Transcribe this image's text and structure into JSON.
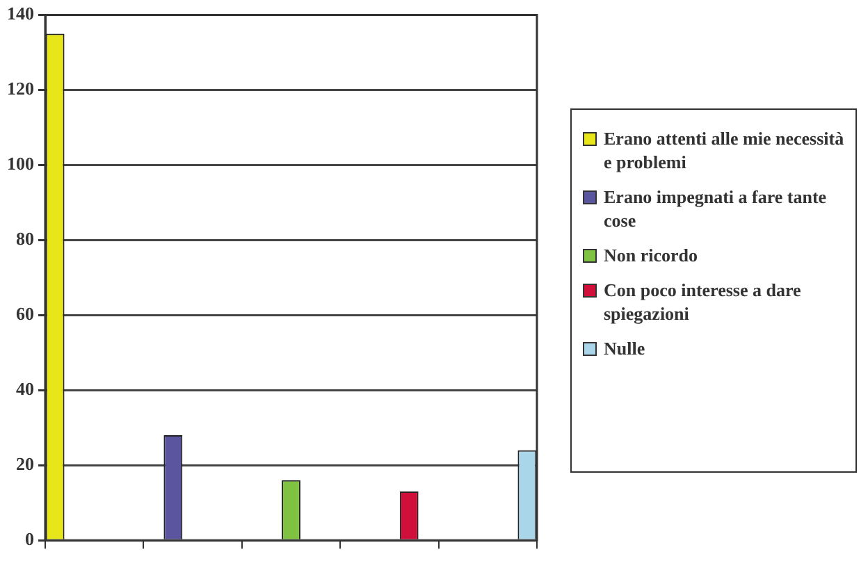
{
  "chart_data": {
    "type": "bar",
    "categories": [
      null,
      null,
      null,
      null,
      null
    ],
    "series": [
      {
        "name": "Erano attenti alle mie necessità e problemi",
        "color": "#e6e61a",
        "values": [
          135,
          null,
          null,
          null,
          null
        ]
      },
      {
        "name": "Erano impegnati a fare tante cose",
        "color": "#5a559e",
        "values": [
          null,
          28,
          null,
          null,
          null
        ]
      },
      {
        "name": "Non ricordo",
        "color": "#7fc241",
        "values": [
          null,
          null,
          16,
          null,
          null
        ]
      },
      {
        "name": "Con poco interesse a dare spiegazioni",
        "color": "#d0103a",
        "values": [
          null,
          null,
          null,
          13,
          null
        ]
      },
      {
        "name": "Nulle",
        "color": "#a9d6e8",
        "values": [
          null,
          null,
          null,
          null,
          24
        ]
      }
    ],
    "ylim": [
      0,
      140
    ],
    "yticks": [
      0,
      20,
      40,
      60,
      80,
      100,
      120,
      140
    ],
    "grid": "y",
    "legend": "right"
  }
}
